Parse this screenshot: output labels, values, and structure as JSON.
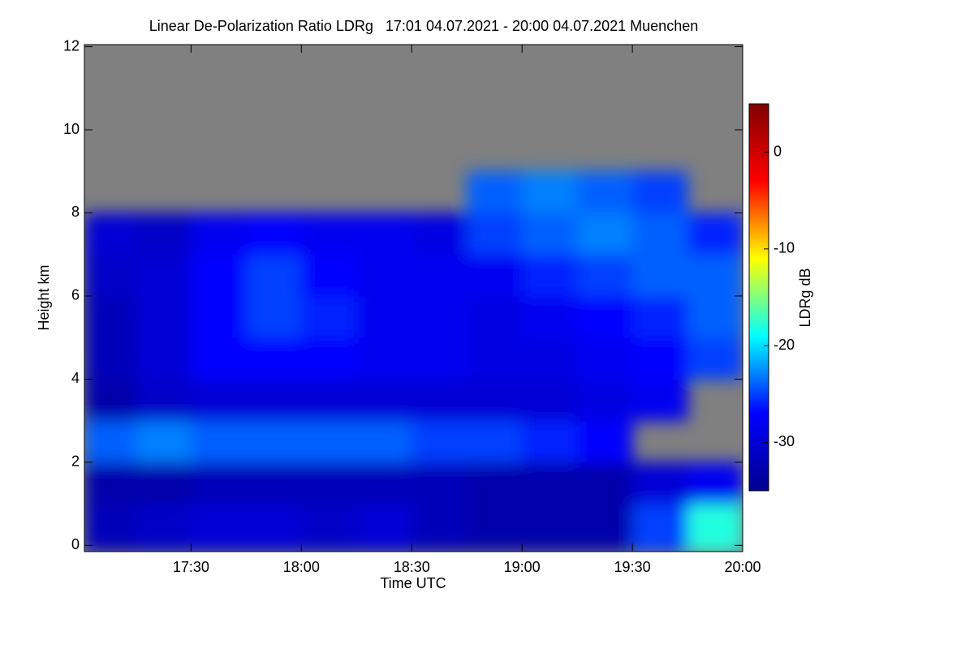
{
  "chart_data": {
    "type": "heatmap",
    "title": "Linear De-Polarization Ratio LDRg   17:01 04.07.2021 - 20:00 04.07.2021 Muenchen",
    "xlabel": "Time UTC",
    "ylabel": "Height km",
    "colorbar_label": "LDRg dB",
    "x_edges": [
      17.0167,
      17.25,
      17.5,
      17.75,
      18,
      18.25,
      18.5,
      18.75,
      19,
      19.25,
      19.5,
      19.75,
      20
    ],
    "y_edges": [
      0,
      1,
      2,
      3,
      4,
      5,
      6,
      7,
      8,
      9,
      10,
      11,
      12
    ],
    "z": [
      [
        -32,
        -31,
        -30,
        -30,
        -31,
        -30,
        -32,
        -33,
        -33,
        -33,
        -25,
        -18
      ],
      [
        -33,
        -33,
        -32,
        -32,
        -32,
        -32,
        -32,
        -33,
        -33,
        -33,
        -30,
        -28
      ],
      [
        -24,
        -23,
        -24,
        -24,
        -24,
        -24,
        -25,
        -25,
        -26,
        -27,
        null,
        null
      ],
      [
        -33,
        -31,
        -30,
        -30,
        -30,
        -30,
        -30,
        -30,
        -30,
        -29,
        -28,
        null
      ],
      [
        -32,
        -30,
        -27,
        -27,
        -27,
        -28,
        -28,
        -29,
        -29,
        -28,
        -27,
        -25
      ],
      [
        -32,
        -30,
        -27,
        -25,
        -26,
        -28,
        -28,
        -29,
        -28,
        -27,
        -26,
        -24
      ],
      [
        -31,
        -30,
        -27,
        -25,
        -27,
        -28,
        -28,
        -28,
        -26,
        -25,
        -24,
        -24
      ],
      [
        -30,
        -31,
        -28,
        -27,
        -28,
        -28,
        -29,
        -25,
        -24,
        -23,
        -24,
        -26
      ],
      [
        null,
        null,
        null,
        null,
        null,
        null,
        null,
        -24,
        -23,
        -24,
        -25,
        null
      ],
      [
        null,
        null,
        null,
        null,
        null,
        null,
        null,
        null,
        null,
        null,
        null,
        null
      ],
      [
        null,
        null,
        null,
        null,
        null,
        null,
        null,
        null,
        null,
        null,
        null,
        null
      ],
      [
        null,
        null,
        null,
        null,
        null,
        null,
        null,
        null,
        null,
        null,
        null,
        null
      ]
    ],
    "xlim": [
      17.0167,
      20
    ],
    "xticks": [
      {
        "value": 17.5,
        "label": "17:30"
      },
      {
        "value": 18,
        "label": "18:00"
      },
      {
        "value": 18.5,
        "label": "18:30"
      },
      {
        "value": 19,
        "label": "19:00"
      },
      {
        "value": 19.5,
        "label": "19:30"
      },
      {
        "value": 20,
        "label": "20:00"
      }
    ],
    "ylim": [
      -0.15,
      12.05
    ],
    "yticks": [
      0,
      2,
      4,
      6,
      8,
      10,
      12
    ],
    "zlim": [
      -35,
      5
    ],
    "zticks": [
      -30,
      -20,
      -10,
      0
    ],
    "colormap": [
      "#00008f",
      "#0000ff",
      "#00ffff",
      "#ffff00",
      "#ff0000",
      "#800000"
    ],
    "missing_color": "#808080"
  }
}
